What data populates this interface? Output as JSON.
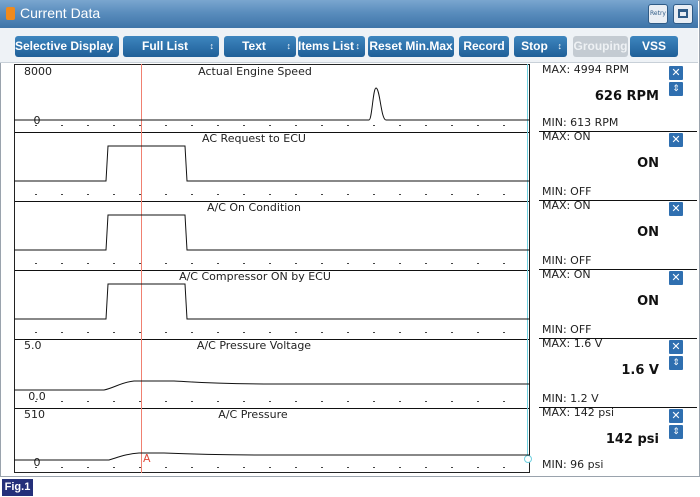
{
  "window": {
    "title": "Current Data",
    "retry_label": "Retry"
  },
  "toolbar": {
    "buttons": [
      {
        "label": "Selective Display",
        "dropdown": true,
        "disabled": false
      },
      {
        "label": "Full List",
        "dropdown": true,
        "disabled": false
      },
      {
        "label": "Text",
        "dropdown": true,
        "disabled": false
      },
      {
        "label": "Items List",
        "dropdown": true,
        "disabled": false
      },
      {
        "label": "Reset Min.Max",
        "dropdown": false,
        "disabled": false
      },
      {
        "label": "Record",
        "dropdown": false,
        "disabled": false
      },
      {
        "label": "Stop",
        "dropdown": true,
        "disabled": false
      },
      {
        "label": "Grouping",
        "dropdown": false,
        "disabled": true
      },
      {
        "label": "VSS",
        "dropdown": false,
        "disabled": false
      }
    ],
    "dropdown_glyph": "↕"
  },
  "cursor": {
    "label": "A"
  },
  "panels": [
    {
      "name": "Actual Engine Speed",
      "y_max_label": "8000",
      "y_min_label": "0",
      "max_text": "MAX:  4994 RPM",
      "value_text": "626 RPM",
      "min_text": "MIN:   613 RPM",
      "has_sort": true
    },
    {
      "name": "AC Request to ECU",
      "y_max_label": "",
      "y_min_label": "",
      "max_text": "MAX: ON",
      "value_text": "ON",
      "min_text": "MIN:  OFF",
      "has_sort": false
    },
    {
      "name": "A/C On Condition",
      "y_max_label": "",
      "y_min_label": "",
      "max_text": "MAX: ON",
      "value_text": "ON",
      "min_text": "MIN:  OFF",
      "has_sort": false
    },
    {
      "name": "A/C Compressor ON by ECU",
      "y_max_label": "",
      "y_min_label": "",
      "max_text": "MAX: ON",
      "value_text": "ON",
      "min_text": "MIN:  OFF",
      "has_sort": false
    },
    {
      "name": "A/C Pressure Voltage",
      "y_max_label": "5.0",
      "y_min_label": "0.0",
      "max_text": "MAX:   1.6 V",
      "value_text": "1.6 V",
      "min_text": "MIN:   1.2 V",
      "has_sort": true
    },
    {
      "name": "A/C Pressure",
      "y_max_label": "510",
      "y_min_label": "0",
      "max_text": "MAX:   142 psi",
      "value_text": "142 psi",
      "min_text": "MIN:    96 psi",
      "has_sort": true
    }
  ],
  "icons": {
    "close": "close-icon",
    "sort": "sort-icon",
    "title": "current-data-icon"
  },
  "colors": {
    "title_bar": "#4f84b6",
    "button": "#2e73ad",
    "cursor_line": "#f08070",
    "end_line": "#6fd0e0"
  },
  "figure_label": "Fig.1"
}
